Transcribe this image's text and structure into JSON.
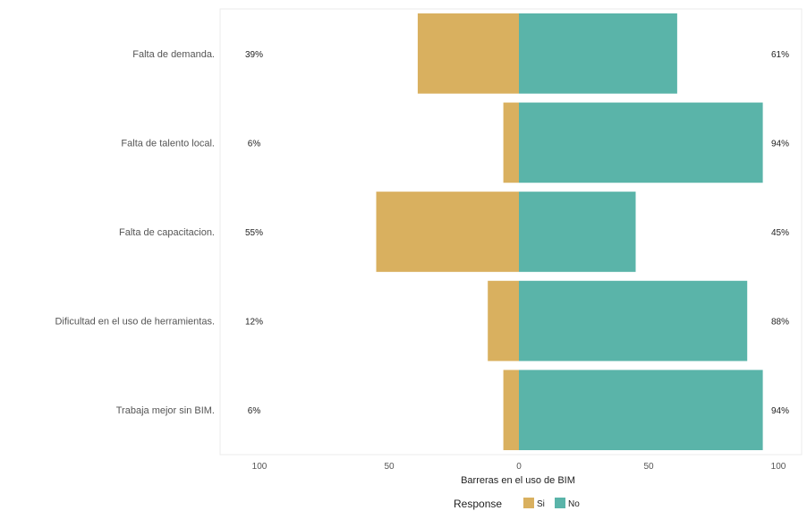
{
  "chart_data": {
    "type": "bar",
    "orientation": "horizontal-diverging",
    "categories": [
      "Falta de demanda.",
      "Falta de talento local.",
      "Falta de capacitacion.",
      "Dificultad en el uso de herramientas.",
      "Trabaja mejor sin BIM."
    ],
    "series": [
      {
        "name": "Si",
        "values": [
          39,
          6,
          55,
          12,
          6
        ],
        "labels": [
          "39%",
          "6%",
          "55%",
          "12%",
          "6%"
        ],
        "color": "#d9b05f",
        "direction": "left"
      },
      {
        "name": "No",
        "values": [
          61,
          94,
          45,
          88,
          94
        ],
        "labels": [
          "61%",
          "94%",
          "45%",
          "88%",
          "94%"
        ],
        "color": "#5ab4a9",
        "direction": "right"
      }
    ],
    "xlabel": "Barreras en el uso de BIM",
    "ylabel": "",
    "xlim": [
      -100,
      100
    ],
    "xticks": [
      -100,
      -50,
      0,
      50,
      100
    ],
    "xtick_labels": [
      "100",
      "50",
      "0",
      "50",
      "100"
    ],
    "legend": {
      "title": "Response",
      "placement": "bottom"
    },
    "grid": false
  }
}
